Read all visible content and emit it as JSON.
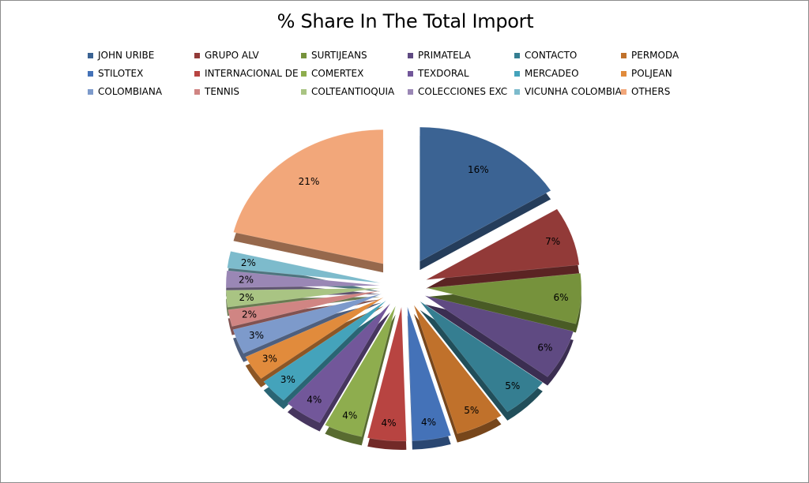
{
  "chart_data": {
    "type": "pie",
    "style": "3d-exploded",
    "title": "% Share In The Total Import",
    "legend_position": "top",
    "slices": [
      {
        "name": "JOHN URIBE",
        "value": 16,
        "label": "16%",
        "color": "#3B6393"
      },
      {
        "name": "GRUPO ALV",
        "value": 7,
        "label": "7%",
        "color": "#923A38"
      },
      {
        "name": "SURTIJEANS",
        "value": 6,
        "label": "6%",
        "color": "#76923C"
      },
      {
        "name": "PRIMATELA",
        "value": 6,
        "label": "6%",
        "color": "#5F4A82"
      },
      {
        "name": "CONTACTO",
        "value": 5,
        "label": "5%",
        "color": "#357E91"
      },
      {
        "name": "PERMODA",
        "value": 5,
        "label": "5%",
        "color": "#C0712B"
      },
      {
        "name": "STILOTEX",
        "value": 4,
        "label": "4%",
        "color": "#4472B8"
      },
      {
        "name": "INTERNACIONAL DE",
        "value": 4,
        "label": "4%",
        "color": "#B84441"
      },
      {
        "name": "COMERTEX",
        "value": 4,
        "label": "4%",
        "color": "#8EAD4E"
      },
      {
        "name": "TEXDORAL",
        "value": 4,
        "label": "4%",
        "color": "#72579A"
      },
      {
        "name": "MERCADEO",
        "value": 3,
        "label": "3%",
        "color": "#44A3BB"
      },
      {
        "name": "POLJEAN",
        "value": 3,
        "label": "3%",
        "color": "#E18B3C"
      },
      {
        "name": "COLOMBIANA",
        "value": 3,
        "label": "3%",
        "color": "#7D9ACB"
      },
      {
        "name": "TENNIS",
        "value": 2,
        "label": "2%",
        "color": "#D08583"
      },
      {
        "name": "COLTEANTIOQUIA",
        "value": 2,
        "label": "2%",
        "color": "#A9C483"
      },
      {
        "name": "COLECCIONES EXC",
        "value": 2,
        "label": "2%",
        "color": "#9A87B5"
      },
      {
        "name": "VICUNHA COLOMBIA",
        "value": 2,
        "label": "2%",
        "color": "#7DBBCC"
      },
      {
        "name": "OTHERS",
        "value": 21,
        "label": "21%",
        "color": "#F2A77A"
      }
    ]
  }
}
